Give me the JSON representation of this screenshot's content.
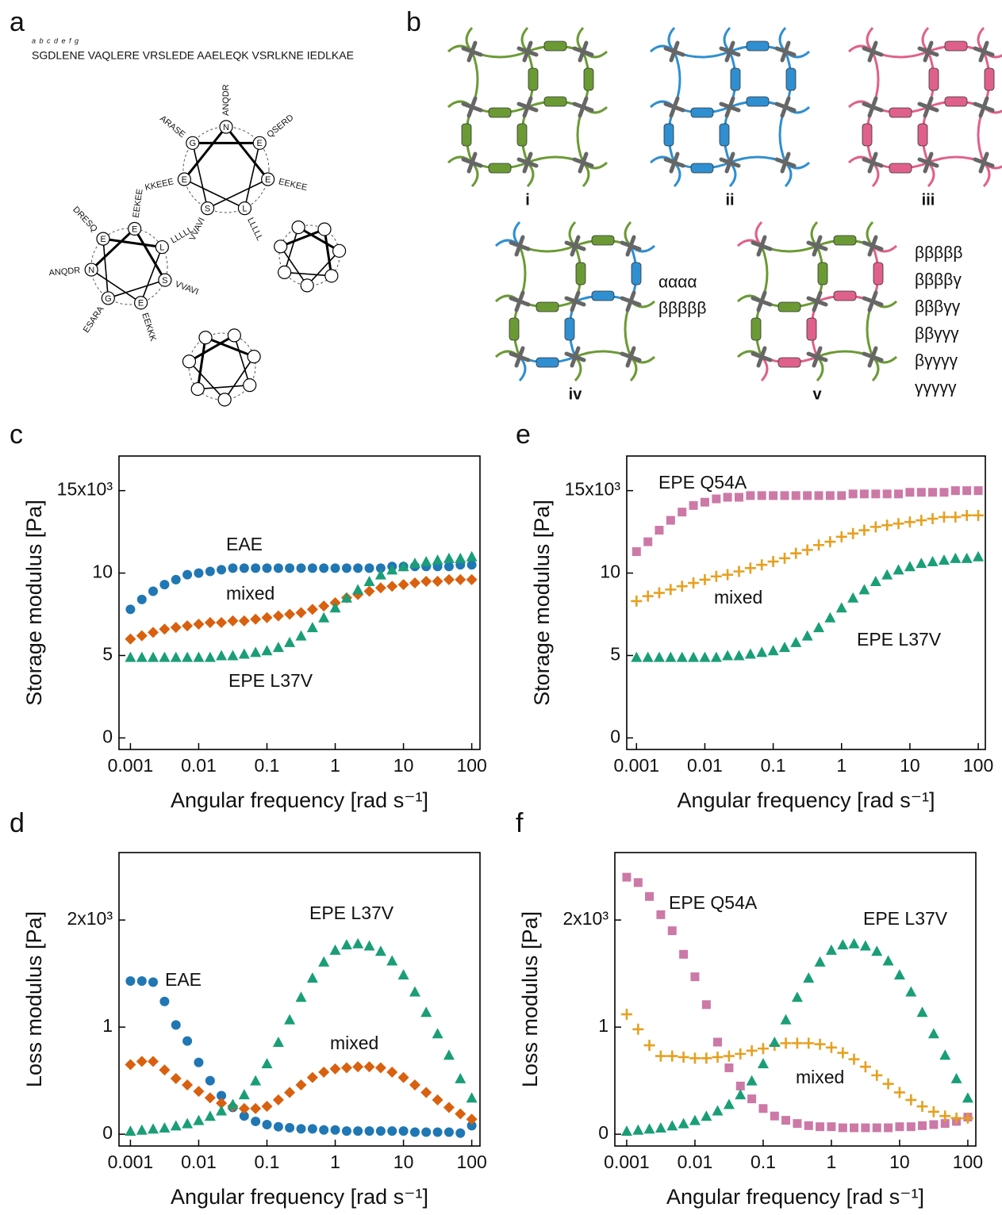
{
  "panel_a": {
    "label": "a",
    "heptad": "a b c d e f g",
    "sequence": "SGDLENE VAQLERE VRSLEDE AAELEQK VSRLKNE IEDLKAE",
    "wheels": [
      {
        "residues": [
          "N",
          "E",
          "E",
          "L",
          "S",
          "E",
          "G"
        ],
        "extensions": [
          "ANQDR",
          "QSERD",
          "EEKEE",
          "LLLLL",
          "VVAVI",
          "KKEEE",
          "ARASE"
        ]
      },
      {
        "residues": [
          "E",
          "L",
          "S",
          "E",
          "G",
          "N",
          "E"
        ],
        "extensions": [
          "EEKEE",
          "LLLLL",
          "VVAVI",
          "EEKKK",
          "ESARA",
          "ANQDR",
          "DRESQ"
        ]
      }
    ]
  },
  "panel_b": {
    "label": "b",
    "networks": [
      "i",
      "ii",
      "iii",
      "iv",
      "v"
    ],
    "iv_text": [
      "αααα",
      "βββββ"
    ],
    "v_text": [
      "βββββ",
      "ββββγ",
      "βββγγ",
      "ββγγγ",
      "βγγγγ",
      "γγγγγ"
    ]
  },
  "chart_data": [
    {
      "type": "scatter",
      "panel": "c",
      "xscale": "log",
      "ylabel": "Storage modulus [Pa]",
      "xlabel": "Angular frequency [rad s⁻¹]",
      "xlim": [
        0.00068,
        132
      ],
      "ylim": [
        -0.7,
        17.1
      ],
      "xticks": [
        0.001,
        0.01,
        0.1,
        1,
        10,
        100
      ],
      "yticks": [
        0,
        5,
        10,
        {
          "value": 15,
          "label": "15x10³"
        }
      ],
      "x": [
        0.001,
        0.00147,
        0.00215,
        0.00316,
        0.00464,
        0.00681,
        0.01,
        0.0147,
        0.0215,
        0.0316,
        0.0464,
        0.0681,
        0.1,
        0.147,
        0.215,
        0.316,
        0.464,
        0.681,
        1,
        1.47,
        2.15,
        3.16,
        4.64,
        6.81,
        10,
        14.7,
        21.5,
        31.6,
        46.4,
        68.1,
        100
      ],
      "series": [
        {
          "name": "EAE",
          "color": "#1f77b4",
          "marker": "circle",
          "values": [
            7.8,
            8.4,
            8.9,
            9.3,
            9.6,
            9.9,
            10.0,
            10.1,
            10.2,
            10.3,
            10.3,
            10.3,
            10.3,
            10.3,
            10.3,
            10.3,
            10.3,
            10.3,
            10.3,
            10.3,
            10.3,
            10.3,
            10.3,
            10.4,
            10.4,
            10.4,
            10.4,
            10.4,
            10.4,
            10.5,
            10.5
          ]
        },
        {
          "name": "mixed",
          "color": "#d9600e",
          "marker": "diamond",
          "values": [
            6.0,
            6.2,
            6.4,
            6.6,
            6.7,
            6.8,
            6.9,
            7.0,
            7.0,
            7.1,
            7.1,
            7.2,
            7.3,
            7.4,
            7.5,
            7.6,
            7.8,
            8.0,
            8.2,
            8.5,
            8.7,
            8.9,
            9.1,
            9.2,
            9.3,
            9.4,
            9.5,
            9.5,
            9.6,
            9.6,
            9.6
          ]
        },
        {
          "name": "EPE L37V",
          "color": "#1a9e77",
          "marker": "triangle",
          "values": [
            4.9,
            4.9,
            4.9,
            4.9,
            4.9,
            4.9,
            4.9,
            4.9,
            5.0,
            5.0,
            5.1,
            5.2,
            5.3,
            5.5,
            5.8,
            6.2,
            6.7,
            7.3,
            7.9,
            8.5,
            9.0,
            9.5,
            9.9,
            10.2,
            10.4,
            10.6,
            10.7,
            10.8,
            10.9,
            10.9,
            11.0
          ]
        }
      ]
    },
    {
      "type": "scatter",
      "panel": "d",
      "xscale": "log",
      "ylabel": "Loss modulus [Pa]",
      "xlabel": "Angular frequency [rad s⁻¹]",
      "xlim": [
        0.00068,
        132
      ],
      "ylim": [
        -0.11,
        2.63
      ],
      "xticks": [
        0.001,
        0.01,
        0.1,
        1,
        10,
        100
      ],
      "yticks": [
        0,
        1,
        {
          "value": 2,
          "label": "2x10³"
        }
      ],
      "x": [
        0.001,
        0.00147,
        0.00215,
        0.00316,
        0.00464,
        0.00681,
        0.01,
        0.0147,
        0.0215,
        0.0316,
        0.0464,
        0.0681,
        0.1,
        0.147,
        0.215,
        0.316,
        0.464,
        0.681,
        1,
        1.47,
        2.15,
        3.16,
        4.64,
        6.81,
        10,
        14.7,
        21.5,
        31.6,
        46.4,
        68.1,
        100
      ],
      "series": [
        {
          "name": "EAE",
          "color": "#1f77b4",
          "marker": "circle",
          "values": [
            1.43,
            1.43,
            1.42,
            1.24,
            1.02,
            0.87,
            0.67,
            0.5,
            0.36,
            0.25,
            0.17,
            0.12,
            0.09,
            0.07,
            0.06,
            0.05,
            0.05,
            0.04,
            0.04,
            0.03,
            0.03,
            0.03,
            0.03,
            0.03,
            0.03,
            0.02,
            0.02,
            0.02,
            0.02,
            0.01,
            0.08
          ]
        },
        {
          "name": "mixed",
          "color": "#d9600e",
          "marker": "diamond",
          "values": [
            0.65,
            0.68,
            0.68,
            0.6,
            0.52,
            0.46,
            0.4,
            0.34,
            0.29,
            0.26,
            0.24,
            0.24,
            0.26,
            0.32,
            0.39,
            0.46,
            0.53,
            0.58,
            0.61,
            0.62,
            0.63,
            0.63,
            0.62,
            0.58,
            0.53,
            0.46,
            0.39,
            0.32,
            0.25,
            0.19,
            0.14
          ]
        },
        {
          "name": "EPE L37V",
          "color": "#1a9e77",
          "marker": "triangle",
          "values": [
            0.03,
            0.04,
            0.05,
            0.06,
            0.08,
            0.1,
            0.13,
            0.17,
            0.22,
            0.28,
            0.37,
            0.5,
            0.66,
            0.86,
            1.07,
            1.28,
            1.46,
            1.61,
            1.72,
            1.77,
            1.78,
            1.76,
            1.71,
            1.62,
            1.49,
            1.33,
            1.14,
            0.94,
            0.74,
            0.52,
            0.34
          ]
        }
      ]
    },
    {
      "type": "scatter",
      "panel": "e",
      "xscale": "log",
      "ylabel": "Storage modulus [Pa]",
      "xlabel": "Angular frequency [rad s⁻¹]",
      "xlim": [
        0.00072,
        127
      ],
      "ylim": [
        -0.7,
        17.1
      ],
      "xticks": [
        0.001,
        0.01,
        0.1,
        1,
        10,
        100
      ],
      "yticks": [
        0,
        5,
        10,
        {
          "value": 15,
          "label": "15x10³"
        }
      ],
      "x": [
        0.001,
        0.00147,
        0.00215,
        0.00316,
        0.00464,
        0.00681,
        0.01,
        0.0147,
        0.0215,
        0.0316,
        0.0464,
        0.0681,
        0.1,
        0.147,
        0.215,
        0.316,
        0.464,
        0.681,
        1,
        1.47,
        2.15,
        3.16,
        4.64,
        6.81,
        10,
        14.7,
        21.5,
        31.6,
        46.4,
        68.1,
        100
      ],
      "series": [
        {
          "name": "EPE Q54A",
          "color": "#cc79a7",
          "marker": "square",
          "values": [
            11.3,
            11.9,
            12.6,
            13.2,
            13.7,
            14.1,
            14.3,
            14.5,
            14.6,
            14.6,
            14.7,
            14.7,
            14.7,
            14.7,
            14.7,
            14.7,
            14.7,
            14.7,
            14.7,
            14.8,
            14.8,
            14.8,
            14.8,
            14.8,
            14.9,
            14.9,
            14.9,
            14.9,
            15.0,
            15.0,
            15.0
          ]
        },
        {
          "name": "mixed",
          "color": "#e6a020",
          "marker": "plus",
          "values": [
            8.3,
            8.6,
            8.8,
            9.0,
            9.2,
            9.4,
            9.6,
            9.8,
            9.9,
            10.1,
            10.3,
            10.5,
            10.7,
            10.9,
            11.2,
            11.4,
            11.7,
            11.9,
            12.2,
            12.4,
            12.6,
            12.8,
            12.9,
            13.0,
            13.1,
            13.2,
            13.3,
            13.4,
            13.4,
            13.5,
            13.5
          ]
        },
        {
          "name": "EPE L37V",
          "color": "#1a9e77",
          "marker": "triangle",
          "values": [
            4.9,
            4.9,
            4.9,
            4.9,
            4.9,
            4.9,
            4.9,
            4.9,
            5.0,
            5.0,
            5.1,
            5.2,
            5.3,
            5.5,
            5.8,
            6.2,
            6.7,
            7.3,
            7.9,
            8.5,
            9.0,
            9.5,
            9.9,
            10.2,
            10.4,
            10.6,
            10.7,
            10.8,
            10.9,
            10.9,
            11.0
          ]
        }
      ]
    },
    {
      "type": "scatter",
      "panel": "f",
      "xscale": "log",
      "ylabel": "Loss modulus [Pa]",
      "xlabel": "Angular frequency [rad s⁻¹]",
      "xlim": [
        0.00067,
        131
      ],
      "ylim": [
        -0.11,
        2.63
      ],
      "xticks": [
        0.001,
        0.01,
        0.1,
        1,
        10,
        100
      ],
      "yticks": [
        0,
        1,
        {
          "value": 2,
          "label": "2x10³"
        }
      ],
      "x": [
        0.001,
        0.00147,
        0.00215,
        0.00316,
        0.00464,
        0.00681,
        0.01,
        0.0147,
        0.0215,
        0.0316,
        0.0464,
        0.0681,
        0.1,
        0.147,
        0.215,
        0.316,
        0.464,
        0.681,
        1,
        1.47,
        2.15,
        3.16,
        4.64,
        6.81,
        10,
        14.7,
        21.5,
        31.6,
        46.4,
        68.1,
        100
      ],
      "series": [
        {
          "name": "EPE Q54A",
          "color": "#cc79a7",
          "marker": "square",
          "values": [
            2.4,
            2.35,
            2.22,
            2.05,
            1.9,
            1.68,
            1.47,
            1.21,
            0.86,
            0.62,
            0.45,
            0.33,
            0.24,
            0.17,
            0.13,
            0.1,
            0.08,
            0.07,
            0.07,
            0.06,
            0.06,
            0.06,
            0.06,
            0.06,
            0.07,
            0.07,
            0.08,
            0.09,
            0.1,
            0.12,
            0.16
          ]
        },
        {
          "name": "mixed",
          "color": "#e6a020",
          "marker": "plus",
          "values": [
            1.12,
            0.98,
            0.83,
            0.73,
            0.73,
            0.72,
            0.71,
            0.71,
            0.72,
            0.73,
            0.75,
            0.78,
            0.8,
            0.83,
            0.85,
            0.85,
            0.85,
            0.84,
            0.81,
            0.76,
            0.7,
            0.63,
            0.55,
            0.47,
            0.39,
            0.32,
            0.26,
            0.21,
            0.17,
            0.15,
            0.15
          ]
        },
        {
          "name": "EPE L37V",
          "color": "#1a9e77",
          "marker": "triangle",
          "values": [
            0.03,
            0.04,
            0.05,
            0.06,
            0.08,
            0.1,
            0.13,
            0.17,
            0.22,
            0.28,
            0.37,
            0.5,
            0.66,
            0.86,
            1.07,
            1.28,
            1.46,
            1.61,
            1.72,
            1.77,
            1.78,
            1.76,
            1.71,
            1.62,
            1.49,
            1.33,
            1.14,
            0.94,
            0.74,
            0.52,
            0.34
          ]
        }
      ]
    }
  ]
}
